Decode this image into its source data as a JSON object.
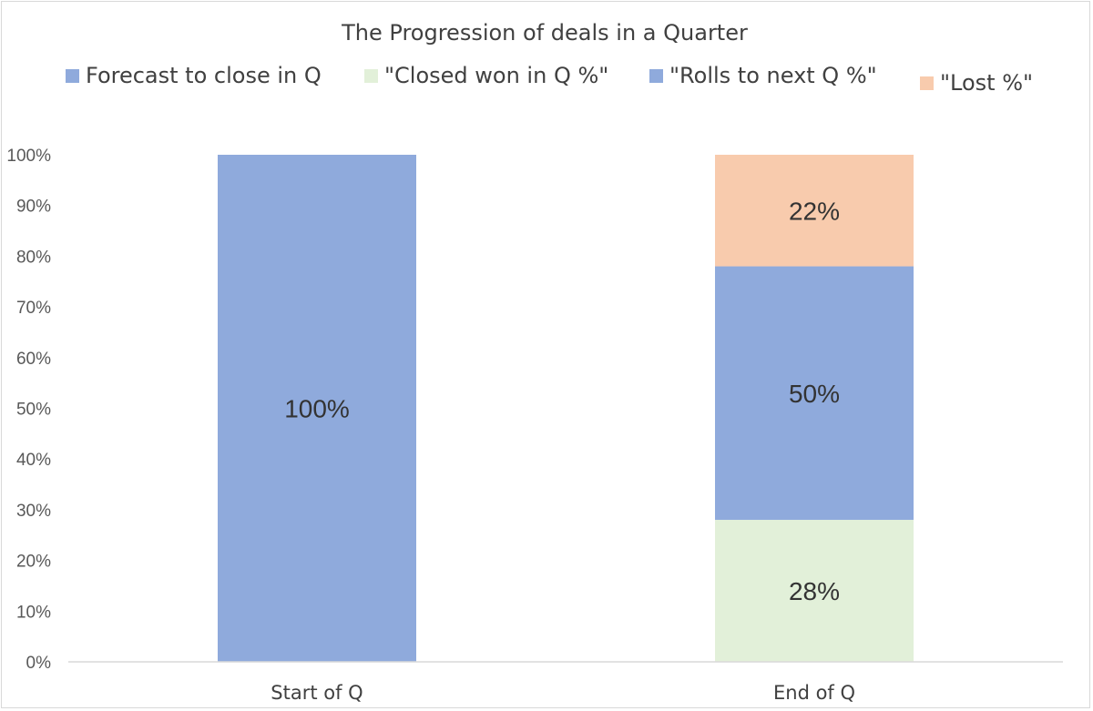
{
  "chart_data": {
    "type": "bar",
    "stacked": true,
    "title": "The Progression of deals in a Quarter",
    "categories": [
      "Start of Q",
      "End of Q"
    ],
    "series": [
      {
        "name": "Forecast to close in Q",
        "values": [
          100,
          0
        ],
        "color": "#8faadc",
        "labels": [
          "100%",
          ""
        ]
      },
      {
        "name": "\"Closed won in Q %\"",
        "values": [
          0,
          28
        ],
        "color": "#e2f0d9",
        "labels": [
          "",
          "28%"
        ]
      },
      {
        "name": "\"Rolls to next Q %\"",
        "values": [
          0,
          50
        ],
        "color": "#8faadc",
        "labels": [
          "",
          "50%"
        ]
      },
      {
        "name": "\"Lost %\"",
        "values": [
          0,
          22
        ],
        "color": "#f8cbad",
        "labels": [
          "",
          "22%"
        ]
      }
    ],
    "ylim": [
      0,
      100
    ],
    "yticks": [
      "0%",
      "10%",
      "20%",
      "30%",
      "40%",
      "50%",
      "60%",
      "70%",
      "80%",
      "90%",
      "100%"
    ],
    "xlabel": "",
    "ylabel": "",
    "grid": false,
    "legend": "top"
  }
}
